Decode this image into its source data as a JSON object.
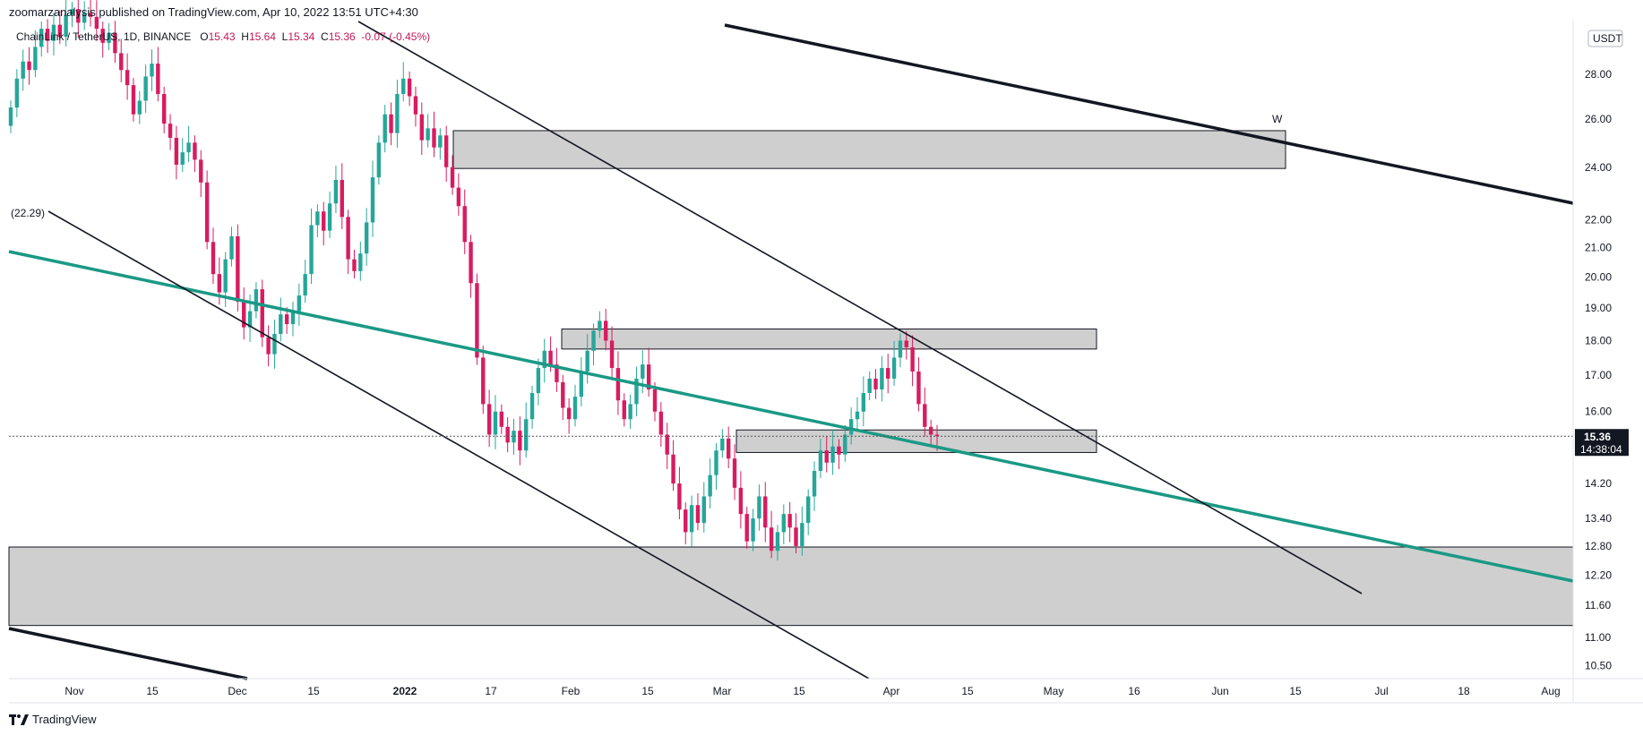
{
  "header": {
    "published_line": "zoomarzanalysis published on TradingView.com, Apr 10, 2022 13:51 UTC+4:30",
    "symbol_line": "ChainLink / TetherUS, 1D, BINANCE",
    "open_label": "O",
    "open": "15.43",
    "high_label": "H",
    "high": "15.64",
    "low_label": "L",
    "low": "15.34",
    "close_label": "C",
    "close": "15.36",
    "change": "-0.07 (-0.45%)"
  },
  "brand": {
    "name": "TradingView"
  },
  "colors": {
    "up": "#26a69a",
    "down": "#d81b60",
    "trend": "#1a9985",
    "zone_fill": "#cfcfcf",
    "price_tag": "#131722"
  },
  "chart_data": {
    "type": "candlestick",
    "symbol": "ChainLink / TetherUS",
    "timeframe": "1D",
    "exchange": "BINANCE",
    "y_scale": "log",
    "ylim": [
      10.2,
      31.5
    ],
    "currency_label": "USDT",
    "y_ticks": [
      "28.00",
      "26.00",
      "24.00",
      "22.00",
      "21.00",
      "20.00",
      "19.00",
      "18.00",
      "17.00",
      "16.00",
      "14.20",
      "13.40",
      "12.80",
      "12.20",
      "11.60",
      "11.00",
      "10.50"
    ],
    "x_ticks": [
      "Nov",
      "15",
      "Dec",
      "15",
      "2022",
      "17",
      "Feb",
      "15",
      "Mar",
      "15",
      "Apr",
      "15",
      "May",
      "16",
      "Jun",
      "15",
      "Jul",
      "18",
      "Aug"
    ],
    "last_price": "15.36",
    "countdown": "14:38:04",
    "left_price_label": "(22.29)",
    "annotation": "W",
    "closes": [
      26.5,
      27.8,
      28.6,
      28.2,
      29.3,
      30.2,
      29.6,
      30.4,
      29.8,
      30.9,
      31.2,
      30.5,
      31.0,
      30.8,
      30.2,
      29.5,
      30.0,
      29.0,
      28.2,
      27.5,
      26.2,
      26.8,
      27.9,
      28.5,
      27.1,
      25.8,
      25.2,
      24.1,
      24.6,
      25.0,
      24.3,
      23.4,
      21.2,
      20.1,
      19.5,
      20.6,
      21.4,
      19.2,
      18.4,
      18.9,
      19.6,
      18.1,
      17.6,
      18.2,
      18.8,
      18.5,
      18.9,
      19.4,
      20.1,
      21.8,
      22.3,
      21.6,
      22.6,
      23.5,
      22.1,
      20.6,
      20.2,
      20.8,
      21.9,
      23.6,
      25.0,
      26.2,
      25.4,
      27.1,
      27.8,
      27.0,
      26.2,
      25.1,
      25.6,
      24.8,
      25.3,
      24.0,
      23.2,
      22.5,
      21.2,
      19.8,
      17.5,
      16.2,
      15.4,
      16.0,
      15.6,
      15.2,
      15.5,
      15.0,
      15.8,
      16.5,
      17.2,
      17.7,
      17.3,
      16.8,
      16.1,
      15.8,
      16.4,
      17.1,
      17.7,
      18.3,
      18.6,
      18.0,
      17.2,
      16.3,
      15.8,
      16.2,
      16.9,
      17.3,
      16.6,
      16.0,
      15.4,
      14.9,
      14.2,
      13.6,
      13.1,
      13.7,
      13.3,
      13.9,
      14.4,
      15.0,
      15.3,
      14.8,
      14.1,
      13.5,
      12.9,
      13.4,
      13.9,
      13.2,
      12.7,
      13.1,
      13.5,
      13.2,
      12.8,
      13.3,
      13.9,
      14.5,
      15.0,
      14.7,
      15.1,
      14.9,
      15.4,
      15.8,
      16.0,
      16.5,
      16.9,
      16.6,
      17.2,
      16.9,
      17.5,
      18.0,
      17.8,
      17.1,
      16.2,
      15.6,
      15.4,
      15.36
    ]
  }
}
